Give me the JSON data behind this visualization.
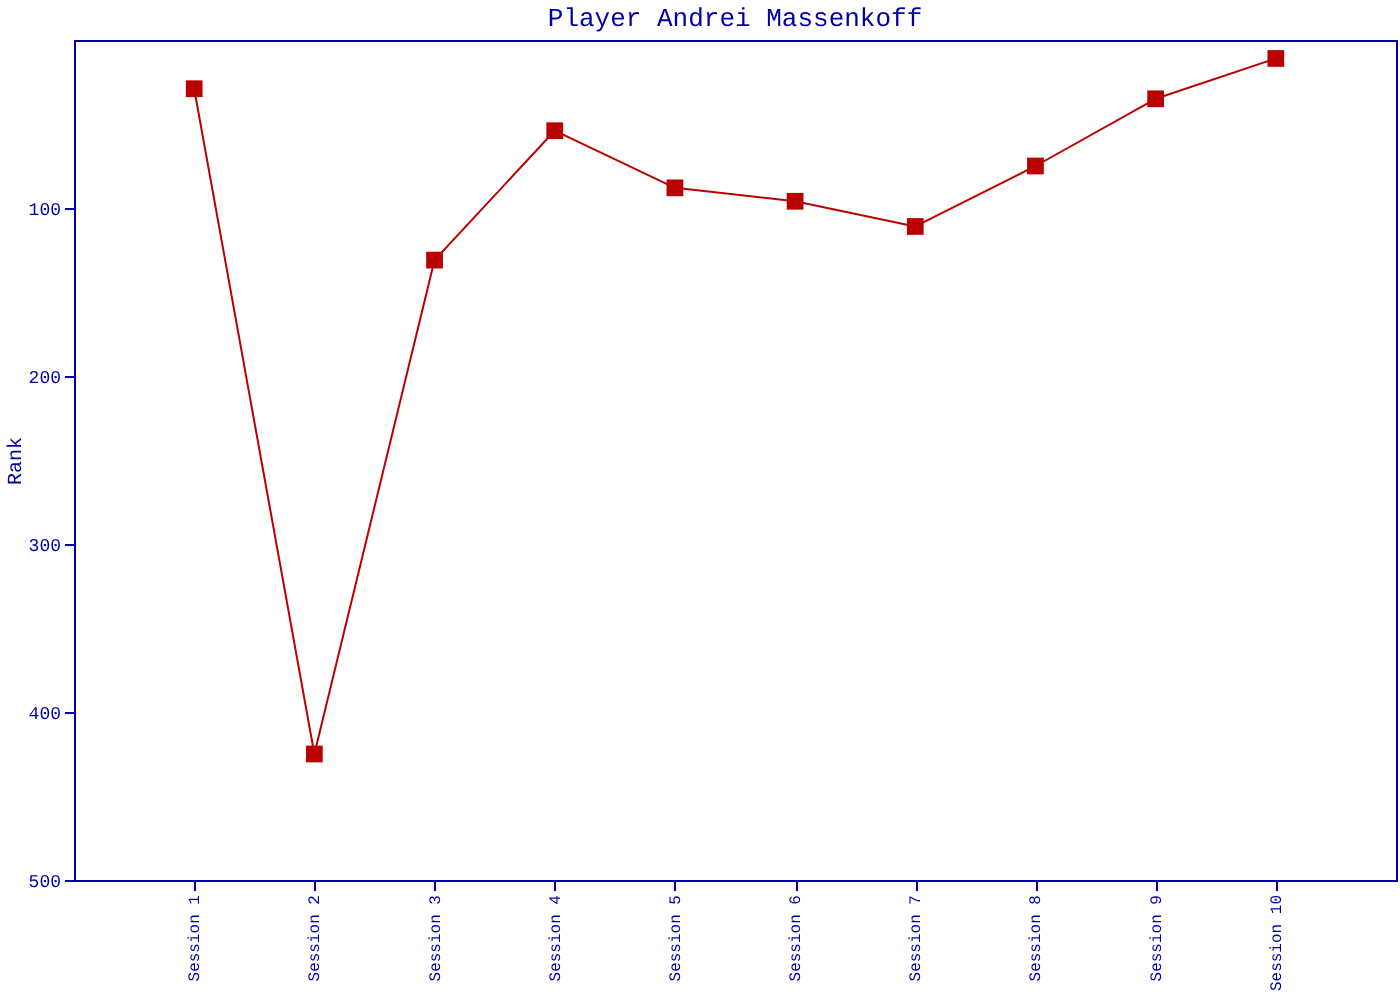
{
  "chart_data": {
    "type": "line",
    "title": "Player Andrei Massenkoff",
    "ylabel": "Rank",
    "categories": [
      "Session 1",
      "Session 2",
      "Session 3",
      "Session 4",
      "Session 5",
      "Session 6",
      "Session 7",
      "Session 8",
      "Session 9",
      "Session 10"
    ],
    "series": [
      {
        "color": "#bb0000",
        "values": [
          29,
          425,
          131,
          54,
          88,
          96,
          111,
          75,
          35,
          11
        ]
      }
    ],
    "ylim": [
      500,
      0
    ],
    "yticks": [
      100,
      200,
      300,
      400,
      500
    ],
    "grid": false,
    "legend": false,
    "marker": "square",
    "line_style": "solid"
  }
}
